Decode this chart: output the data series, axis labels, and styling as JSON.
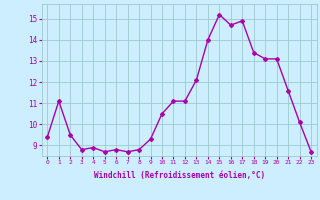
{
  "x": [
    0,
    1,
    2,
    3,
    4,
    5,
    6,
    7,
    8,
    9,
    10,
    11,
    12,
    13,
    14,
    15,
    16,
    17,
    18,
    19,
    20,
    21,
    22,
    23
  ],
  "y": [
    9.4,
    11.1,
    9.5,
    8.8,
    8.9,
    8.7,
    8.8,
    8.7,
    8.8,
    9.3,
    10.5,
    11.1,
    11.1,
    12.1,
    14.0,
    15.2,
    14.7,
    14.9,
    13.4,
    13.1,
    13.1,
    11.6,
    10.1,
    8.7
  ],
  "line_color": "#aa00aa",
  "marker": "D",
  "marker_size": 2,
  "line_width": 1.0,
  "bg_color": "#cceeff",
  "grid_color": "#99cccc",
  "xlabel": "Windchill (Refroidissement éolien,°C)",
  "xlabel_color": "#aa00aa",
  "tick_color": "#aa00aa",
  "ylim": [
    8.5,
    15.7
  ],
  "yticks": [
    9,
    10,
    11,
    12,
    13,
    14,
    15
  ],
  "xticks": [
    0,
    1,
    2,
    3,
    4,
    5,
    6,
    7,
    8,
    9,
    10,
    11,
    12,
    13,
    14,
    15,
    16,
    17,
    18,
    19,
    20,
    21,
    22,
    23
  ],
  "xlim": [
    -0.5,
    23.5
  ]
}
